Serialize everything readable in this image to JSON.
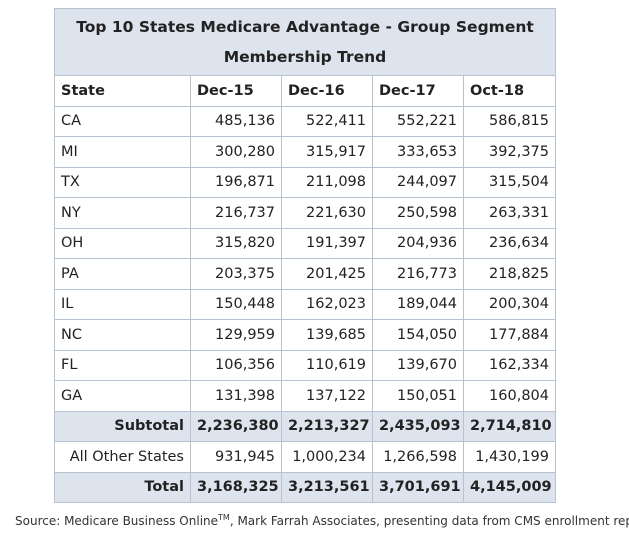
{
  "title": "Top 10 States Medicare Advantage - Group Segment Membership Trend",
  "columns": [
    "State",
    "Dec-15",
    "Dec-16",
    "Dec-17",
    "Oct-18"
  ],
  "rows": [
    {
      "state": "CA",
      "values": [
        "485,136",
        "522,411",
        "552,221",
        "586,815"
      ]
    },
    {
      "state": "MI",
      "values": [
        "300,280",
        "315,917",
        "333,653",
        "392,375"
      ]
    },
    {
      "state": "TX",
      "values": [
        "196,871",
        "211,098",
        "244,097",
        "315,504"
      ]
    },
    {
      "state": "NY",
      "values": [
        "216,737",
        "221,630",
        "250,598",
        "263,331"
      ]
    },
    {
      "state": "OH",
      "values": [
        "315,820",
        "191,397",
        "204,936",
        "236,634"
      ]
    },
    {
      "state": "PA",
      "values": [
        "203,375",
        "201,425",
        "216,773",
        "218,825"
      ]
    },
    {
      "state": "IL",
      "values": [
        "150,448",
        "162,023",
        "189,044",
        "200,304"
      ]
    },
    {
      "state": "NC",
      "values": [
        "129,959",
        "139,685",
        "154,050",
        "177,884"
      ]
    },
    {
      "state": "FL",
      "values": [
        "106,356",
        "110,619",
        "139,670",
        "162,334"
      ]
    },
    {
      "state": "GA",
      "values": [
        "131,398",
        "137,122",
        "150,051",
        "160,804"
      ]
    }
  ],
  "subtotal": {
    "label": "Subtotal",
    "values": [
      "2,236,380",
      "2,213,327",
      "2,435,093",
      "2,714,810"
    ]
  },
  "other": {
    "label": "All Other States",
    "values": [
      "931,945",
      "1,000,234",
      "1,266,598",
      "1,430,199"
    ]
  },
  "total": {
    "label": "Total",
    "values": [
      "3,168,325",
      "3,213,561",
      "3,701,691",
      "4,145,009"
    ]
  },
  "source": {
    "prefix": "Source: Medicare Business Online",
    "tm": "TM",
    "suffix": ", Mark Farrah Associates, presenting data from CMS enrollment reports"
  }
}
